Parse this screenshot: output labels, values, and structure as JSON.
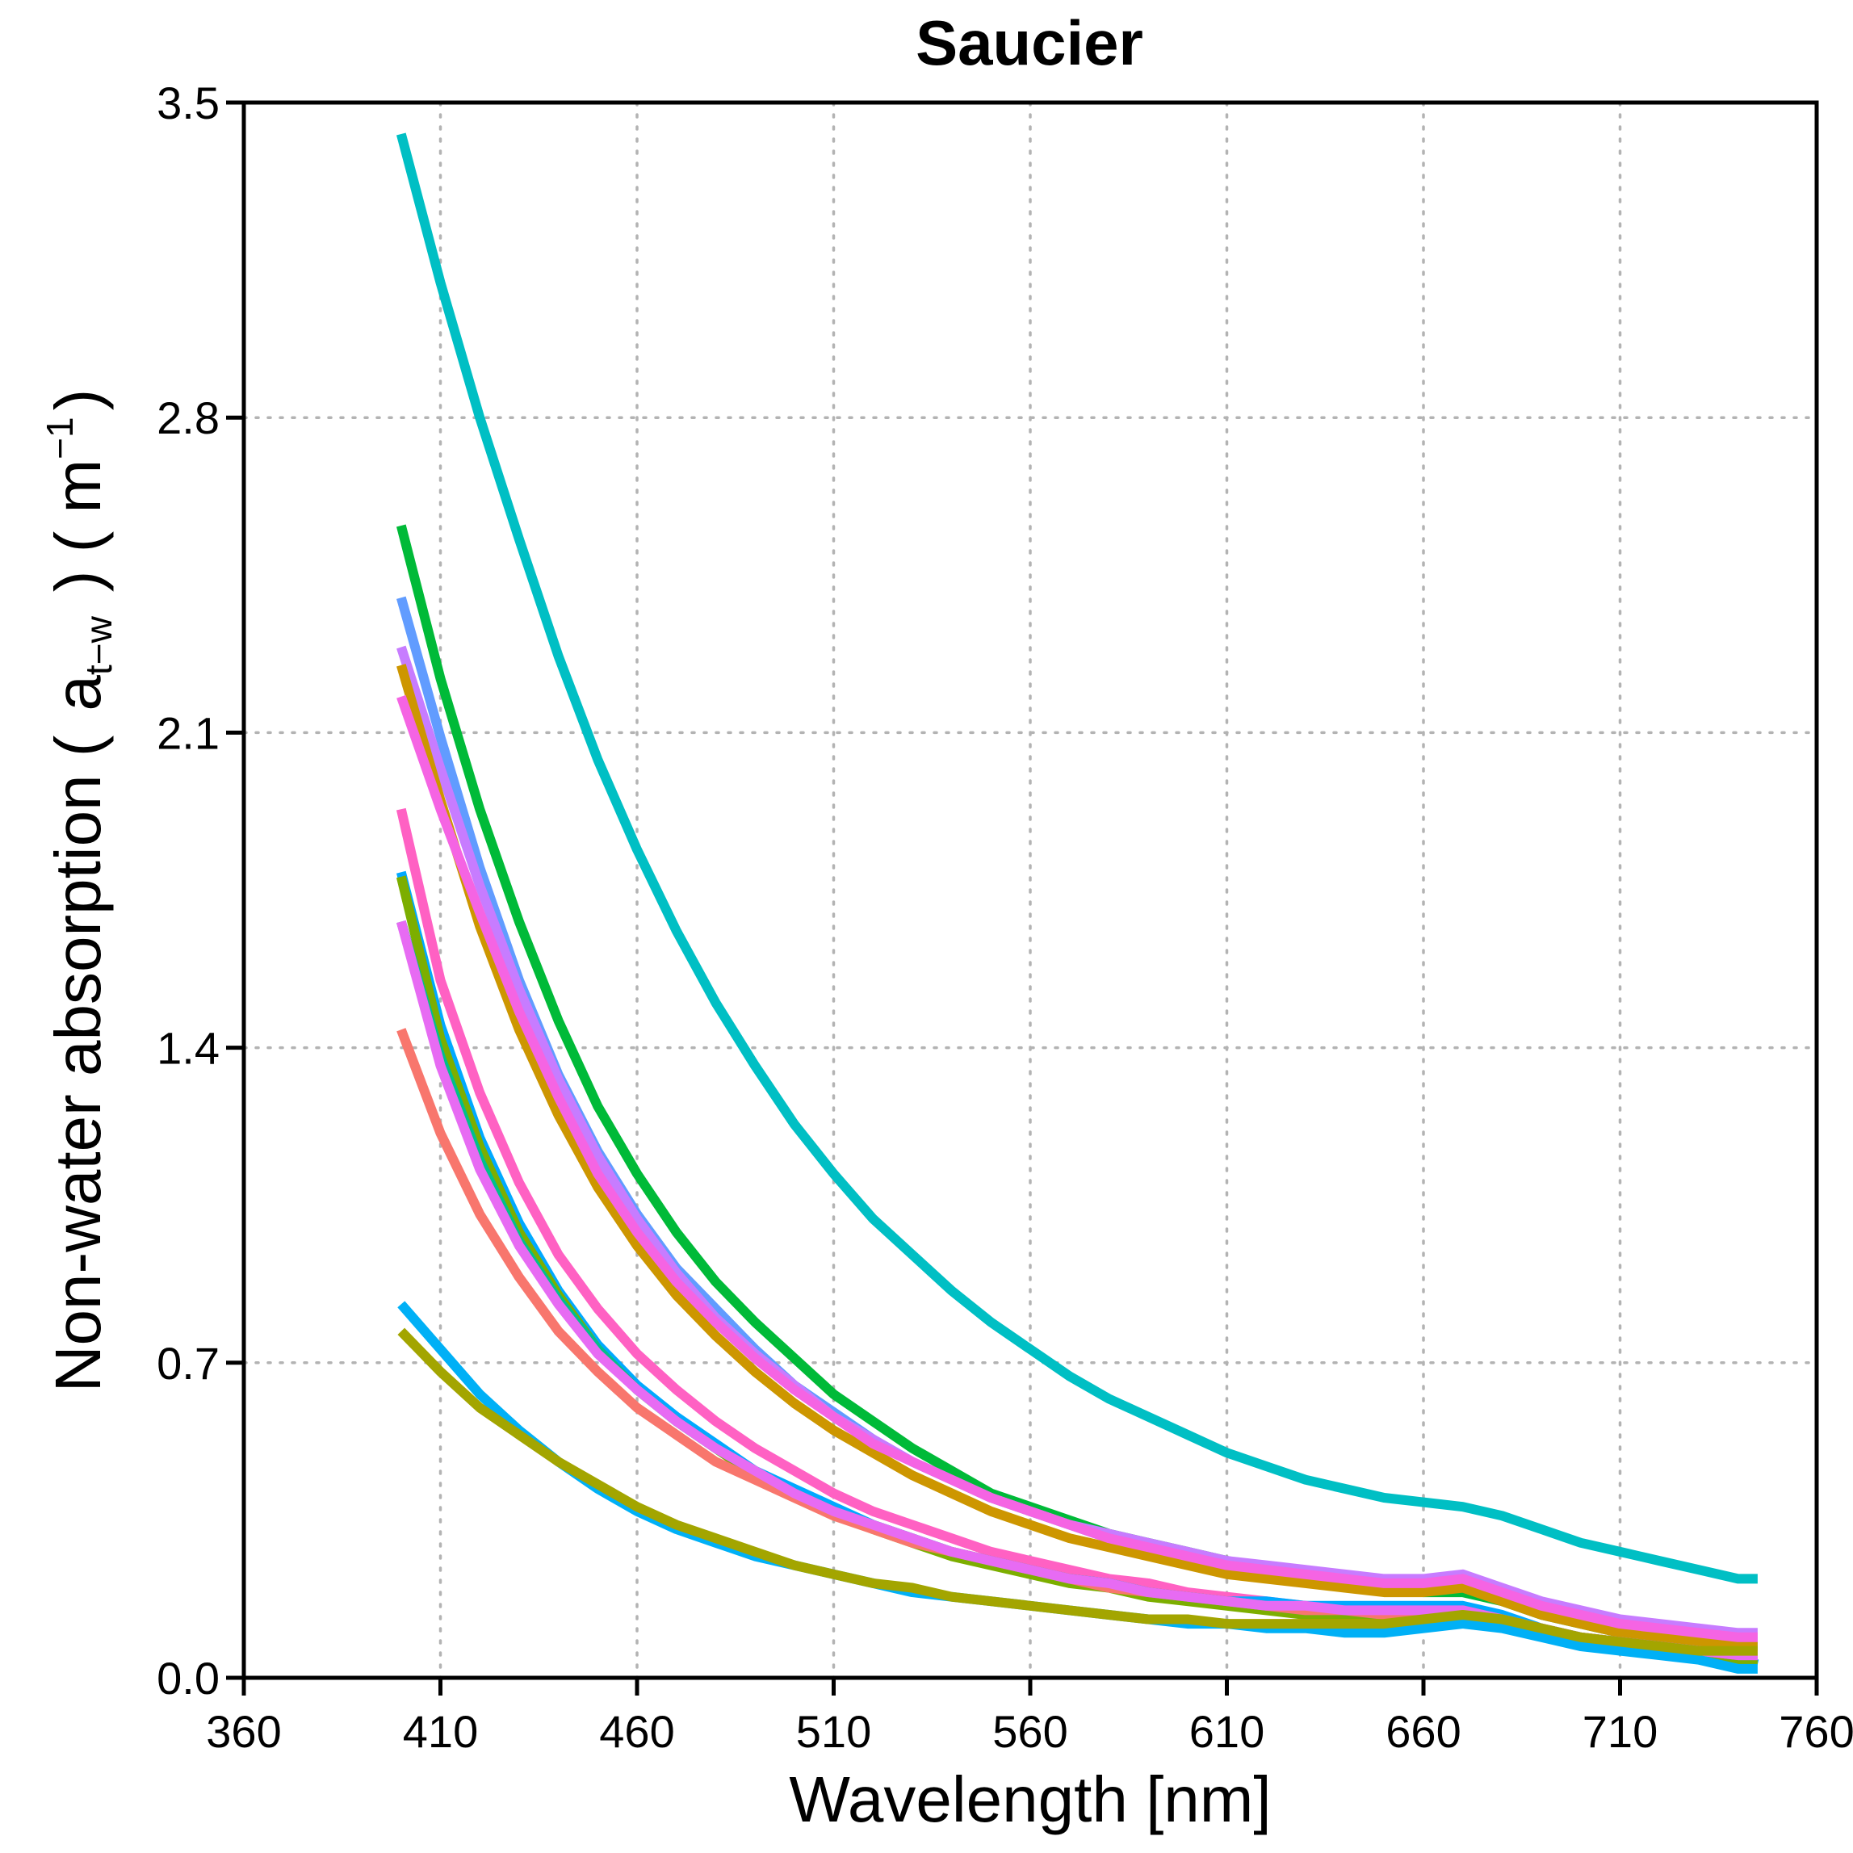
{
  "chart_data": {
    "type": "line",
    "title": "Saucier",
    "xlabel": "Wavelength [nm]",
    "ylabel": {
      "prefix": "Non-water absorption (",
      "symbol": "a",
      "subscript": "t−w",
      "middle": ") ( m",
      "superscript": "−1",
      "suffix": ")"
    },
    "xlim": [
      360,
      760
    ],
    "ylim": [
      0.0,
      3.5
    ],
    "xticks": [
      360,
      410,
      460,
      510,
      560,
      610,
      660,
      710,
      760
    ],
    "yticks": [
      0.0,
      0.7,
      1.4,
      2.1,
      2.8,
      3.5
    ],
    "xtick_labels": [
      "360",
      "410",
      "460",
      "510",
      "560",
      "610",
      "660",
      "710",
      "760"
    ],
    "ytick_labels": [
      "0.0",
      "0.7",
      "1.4",
      "2.1",
      "2.8",
      "3.5"
    ],
    "grid": true,
    "x": [
      400,
      410,
      420,
      430,
      440,
      450,
      460,
      470,
      480,
      490,
      500,
      510,
      520,
      530,
      540,
      550,
      560,
      570,
      580,
      590,
      600,
      610,
      620,
      630,
      640,
      650,
      660,
      670,
      680,
      690,
      700,
      710,
      720,
      730,
      740,
      745
    ],
    "series": [
      {
        "color": "#00BFC4",
        "values": [
          3.43,
          3.1,
          2.8,
          2.53,
          2.27,
          2.04,
          1.84,
          1.66,
          1.5,
          1.36,
          1.23,
          1.12,
          1.02,
          0.94,
          0.86,
          0.79,
          0.73,
          0.67,
          0.62,
          0.58,
          0.54,
          0.5,
          0.47,
          0.44,
          0.42,
          0.4,
          0.39,
          0.38,
          0.36,
          0.33,
          0.3,
          0.28,
          0.26,
          0.24,
          0.22,
          0.22
        ]
      },
      {
        "color": "#00BA38",
        "values": [
          2.56,
          2.22,
          1.93,
          1.68,
          1.46,
          1.27,
          1.12,
          0.99,
          0.88,
          0.79,
          0.71,
          0.63,
          0.57,
          0.51,
          0.46,
          0.41,
          0.38,
          0.35,
          0.32,
          0.3,
          0.28,
          0.26,
          0.24,
          0.22,
          0.21,
          0.2,
          0.19,
          0.19,
          0.17,
          0.14,
          0.12,
          0.1,
          0.09,
          0.08,
          0.07,
          0.07
        ]
      },
      {
        "color": "#619CFF",
        "values": [
          2.4,
          2.09,
          1.8,
          1.55,
          1.34,
          1.17,
          1.03,
          0.91,
          0.82,
          0.73,
          0.65,
          0.59,
          0.53,
          0.48,
          0.44,
          0.4,
          0.37,
          0.34,
          0.31,
          0.29,
          0.27,
          0.26,
          0.24,
          0.23,
          0.22,
          0.21,
          0.21,
          0.22,
          0.19,
          0.16,
          0.13,
          0.11,
          0.1,
          0.09,
          0.08,
          0.08
        ]
      },
      {
        "color": "#C77CFF",
        "values": [
          2.29,
          2.02,
          1.76,
          1.53,
          1.33,
          1.16,
          1.02,
          0.9,
          0.8,
          0.72,
          0.65,
          0.58,
          0.53,
          0.48,
          0.44,
          0.4,
          0.37,
          0.34,
          0.32,
          0.3,
          0.28,
          0.26,
          0.25,
          0.24,
          0.23,
          0.22,
          0.22,
          0.23,
          0.2,
          0.17,
          0.15,
          0.13,
          0.12,
          0.11,
          0.1,
          0.1
        ]
      },
      {
        "color": "#CD9600",
        "values": [
          2.25,
          1.95,
          1.67,
          1.44,
          1.25,
          1.09,
          0.96,
          0.85,
          0.76,
          0.68,
          0.61,
          0.55,
          0.5,
          0.45,
          0.41,
          0.37,
          0.34,
          0.31,
          0.29,
          0.27,
          0.25,
          0.23,
          0.22,
          0.21,
          0.2,
          0.19,
          0.19,
          0.2,
          0.17,
          0.14,
          0.12,
          0.1,
          0.09,
          0.08,
          0.07,
          0.07
        ]
      },
      {
        "color": "#F564E3",
        "values": [
          2.18,
          1.93,
          1.7,
          1.48,
          1.29,
          1.12,
          0.99,
          0.88,
          0.79,
          0.71,
          0.64,
          0.58,
          0.52,
          0.48,
          0.44,
          0.4,
          0.37,
          0.34,
          0.31,
          0.29,
          0.27,
          0.25,
          0.24,
          0.23,
          0.22,
          0.21,
          0.21,
          0.22,
          0.19,
          0.16,
          0.14,
          0.12,
          0.11,
          0.1,
          0.09,
          0.09
        ]
      },
      {
        "color": "#FF61C3",
        "values": [
          1.93,
          1.55,
          1.3,
          1.1,
          0.94,
          0.82,
          0.72,
          0.64,
          0.57,
          0.51,
          0.46,
          0.41,
          0.37,
          0.34,
          0.31,
          0.28,
          0.26,
          0.24,
          0.22,
          0.21,
          0.19,
          0.18,
          0.17,
          0.16,
          0.15,
          0.15,
          0.15,
          0.15,
          0.13,
          0.11,
          0.09,
          0.08,
          0.07,
          0.06,
          0.05,
          0.05
        ]
      },
      {
        "color": "#00A9FF",
        "values": [
          1.79,
          1.45,
          1.2,
          1.01,
          0.86,
          0.74,
          0.65,
          0.58,
          0.52,
          0.46,
          0.42,
          0.38,
          0.34,
          0.31,
          0.28,
          0.26,
          0.24,
          0.22,
          0.21,
          0.19,
          0.18,
          0.17,
          0.17,
          0.16,
          0.16,
          0.16,
          0.16,
          0.16,
          0.14,
          0.11,
          0.09,
          0.07,
          0.06,
          0.05,
          0.04,
          0.03
        ]
      },
      {
        "color": "#7CAE00",
        "values": [
          1.78,
          1.42,
          1.18,
          0.99,
          0.85,
          0.73,
          0.64,
          0.57,
          0.51,
          0.45,
          0.41,
          0.37,
          0.33,
          0.3,
          0.27,
          0.25,
          0.23,
          0.21,
          0.2,
          0.18,
          0.17,
          0.16,
          0.15,
          0.14,
          0.14,
          0.14,
          0.14,
          0.14,
          0.12,
          0.1,
          0.08,
          0.07,
          0.06,
          0.05,
          0.04,
          0.04
        ]
      },
      {
        "color": "#00C08B",
        "values": [
          1.68,
          1.38,
          1.15,
          0.97,
          0.84,
          0.73,
          0.64,
          0.57,
          0.51,
          0.46,
          0.41,
          0.37,
          0.34,
          0.31,
          0.28,
          0.26,
          0.24,
          0.22,
          0.21,
          0.19,
          0.18,
          0.17,
          0.16,
          0.15,
          0.15,
          0.14,
          0.14,
          0.15,
          0.13,
          0.11,
          0.09,
          0.08,
          0.07,
          0.06,
          0.05,
          0.05
        ]
      },
      {
        "color": "#F8766D",
        "values": [
          1.44,
          1.21,
          1.03,
          0.89,
          0.77,
          0.68,
          0.6,
          0.54,
          0.48,
          0.44,
          0.4,
          0.36,
          0.33,
          0.3,
          0.28,
          0.26,
          0.24,
          0.22,
          0.2,
          0.19,
          0.18,
          0.17,
          0.16,
          0.15,
          0.15,
          0.14,
          0.14,
          0.15,
          0.13,
          0.11,
          0.09,
          0.08,
          0.07,
          0.06,
          0.05,
          0.05
        ]
      },
      {
        "color": "#E76BF3",
        "values": [
          1.68,
          1.36,
          1.13,
          0.96,
          0.83,
          0.72,
          0.64,
          0.57,
          0.51,
          0.46,
          0.41,
          0.37,
          0.34,
          0.31,
          0.28,
          0.26,
          0.24,
          0.22,
          0.21,
          0.19,
          0.18,
          0.17,
          0.16,
          0.16,
          0.15,
          0.15,
          0.15,
          0.15,
          0.13,
          0.11,
          0.09,
          0.08,
          0.07,
          0.06,
          0.05,
          0.05
        ]
      },
      {
        "color": "#00B0F6",
        "values": [
          0.83,
          0.73,
          0.63,
          0.55,
          0.48,
          0.42,
          0.37,
          0.33,
          0.3,
          0.27,
          0.25,
          0.23,
          0.21,
          0.19,
          0.18,
          0.17,
          0.16,
          0.15,
          0.14,
          0.13,
          0.12,
          0.12,
          0.11,
          0.11,
          0.1,
          0.1,
          0.11,
          0.12,
          0.11,
          0.09,
          0.07,
          0.06,
          0.05,
          0.04,
          0.02,
          0.02
        ]
      },
      {
        "color": "#A3A500",
        "values": [
          0.77,
          0.68,
          0.6,
          0.54,
          0.48,
          0.43,
          0.38,
          0.34,
          0.31,
          0.28,
          0.25,
          0.23,
          0.21,
          0.2,
          0.18,
          0.17,
          0.16,
          0.15,
          0.14,
          0.13,
          0.13,
          0.12,
          0.12,
          0.12,
          0.12,
          0.12,
          0.13,
          0.14,
          0.13,
          0.11,
          0.09,
          0.08,
          0.07,
          0.06,
          0.06,
          0.06
        ]
      }
    ]
  }
}
